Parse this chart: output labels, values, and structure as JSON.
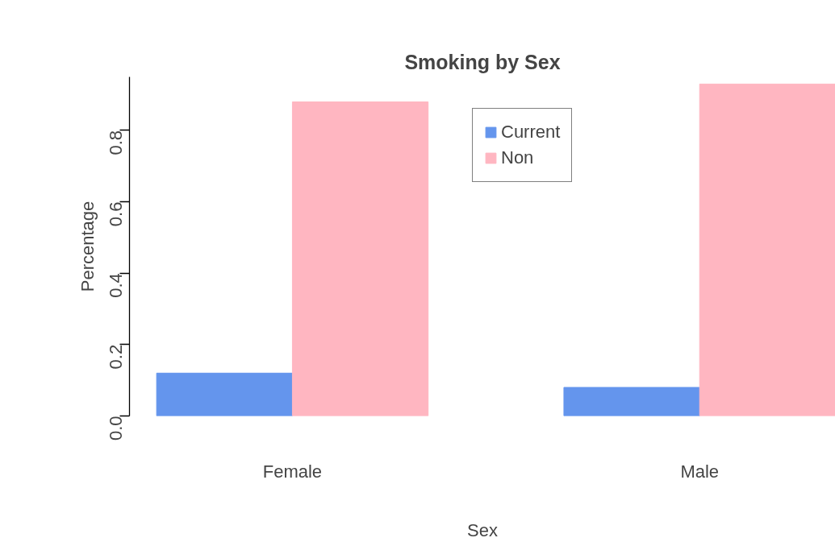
{
  "chart_data": {
    "type": "bar",
    "title": "Smoking by Sex",
    "xlabel": "Sex",
    "ylabel": "Percentage",
    "categories": [
      "Female",
      "Male"
    ],
    "series": [
      {
        "name": "Current",
        "color": "#6495ed",
        "values": [
          0.12,
          0.08
        ]
      },
      {
        "name": "Non",
        "color": "#ffb6c1",
        "values": [
          0.88,
          0.93
        ]
      }
    ],
    "ylim": [
      0,
      0.95
    ],
    "yticks": [
      {
        "value": 0,
        "label": "0.0"
      },
      0.2,
      0.4,
      0.6,
      0.8
    ],
    "grid": false,
    "legend": "top"
  }
}
